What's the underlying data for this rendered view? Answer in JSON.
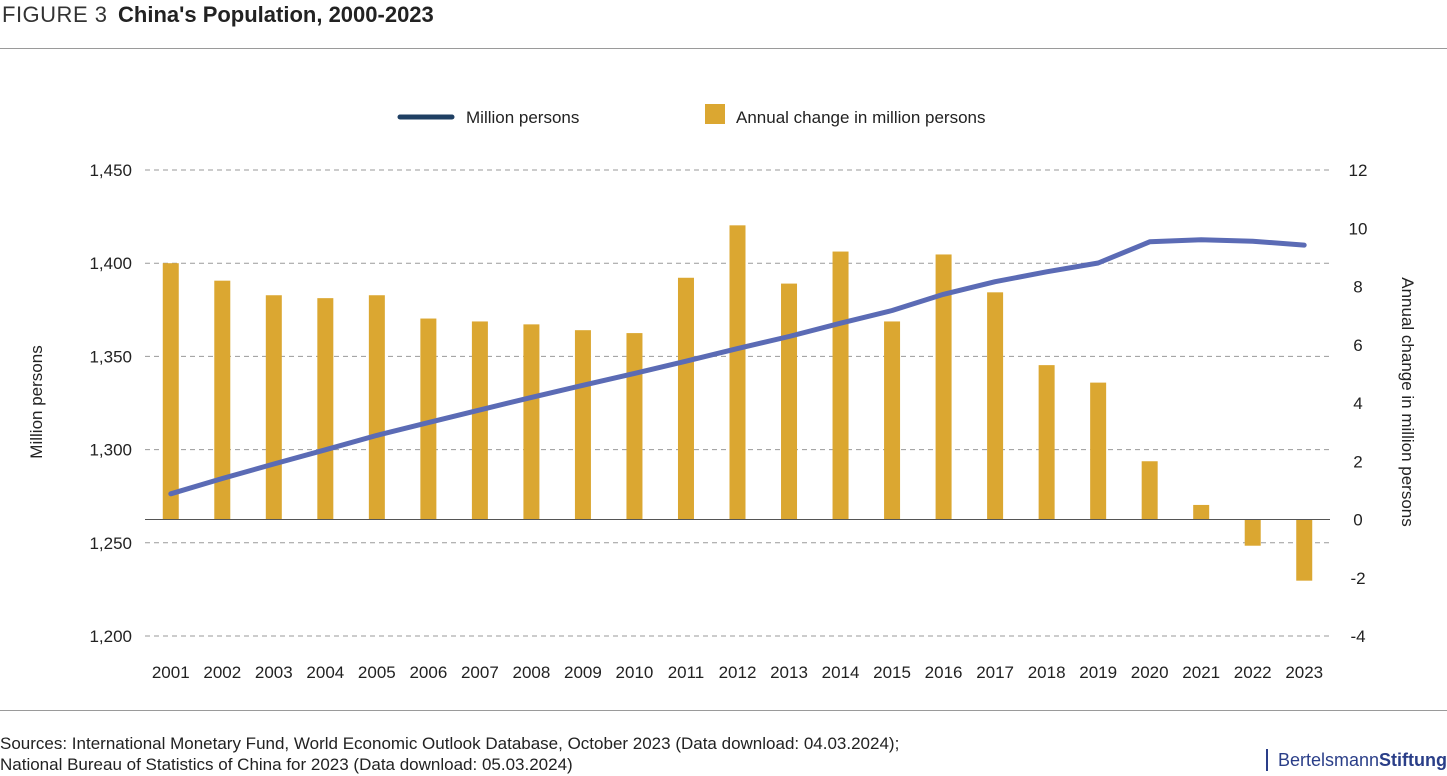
{
  "figure": {
    "label": "FIGURE 3",
    "title": "China's Population, 2000-2023"
  },
  "sources": {
    "line1": "Sources: International Monetary Fund, World Economic Outlook Database, October 2023 (Data download: 04.03.2024);",
    "line2": "National Bureau of Statistics of China for 2023 (Data download: 05.03.2024)"
  },
  "brand": {
    "part1": "Bertelsmann",
    "part2": "Stiftung"
  },
  "colors": {
    "line": "#5b6bb5",
    "line_legend": "#1f3f63",
    "bar": "#dba731",
    "grid": "#9a9a9a",
    "text": "#222222"
  },
  "chart_data": {
    "type": "bar",
    "categories": [
      "2001",
      "2002",
      "2003",
      "2004",
      "2005",
      "2006",
      "2007",
      "2008",
      "2009",
      "2010",
      "2011",
      "2012",
      "2013",
      "2014",
      "2015",
      "2016",
      "2017",
      "2018",
      "2019",
      "2020",
      "2021",
      "2022",
      "2023"
    ],
    "series": [
      {
        "name": "Million persons",
        "type": "line",
        "axis": "left",
        "values": [
          1276.3,
          1284.5,
          1292.3,
          1299.9,
          1307.6,
          1314.5,
          1321.3,
          1328.0,
          1334.5,
          1340.9,
          1347.4,
          1354.2,
          1360.7,
          1367.8,
          1374.6,
          1383.3,
          1390.1,
          1395.4,
          1400.1,
          1411.5,
          1412.6,
          1411.8,
          1409.7
        ]
      },
      {
        "name": "Annual change in million persons",
        "type": "bar",
        "axis": "right",
        "values": [
          8.8,
          8.2,
          7.7,
          7.6,
          7.7,
          6.9,
          6.8,
          6.7,
          6.5,
          6.4,
          8.3,
          10.1,
          8.1,
          9.2,
          6.8,
          9.1,
          7.8,
          5.3,
          4.7,
          2.0,
          0.5,
          -0.9,
          -2.1
        ]
      }
    ],
    "ylabel": "Million persons",
    "y2label": "Annual change in million persons",
    "ylim": [
      1200,
      1450
    ],
    "y2lim": [
      -4,
      12
    ],
    "yticks": [
      "1,200",
      "1,250",
      "1,300",
      "1,350",
      "1,400",
      "1,450"
    ],
    "y2ticks": [
      "-4",
      "-2",
      "0",
      "2",
      "4",
      "6",
      "8",
      "10",
      "12"
    ],
    "grid": true,
    "legend": "top-center"
  }
}
